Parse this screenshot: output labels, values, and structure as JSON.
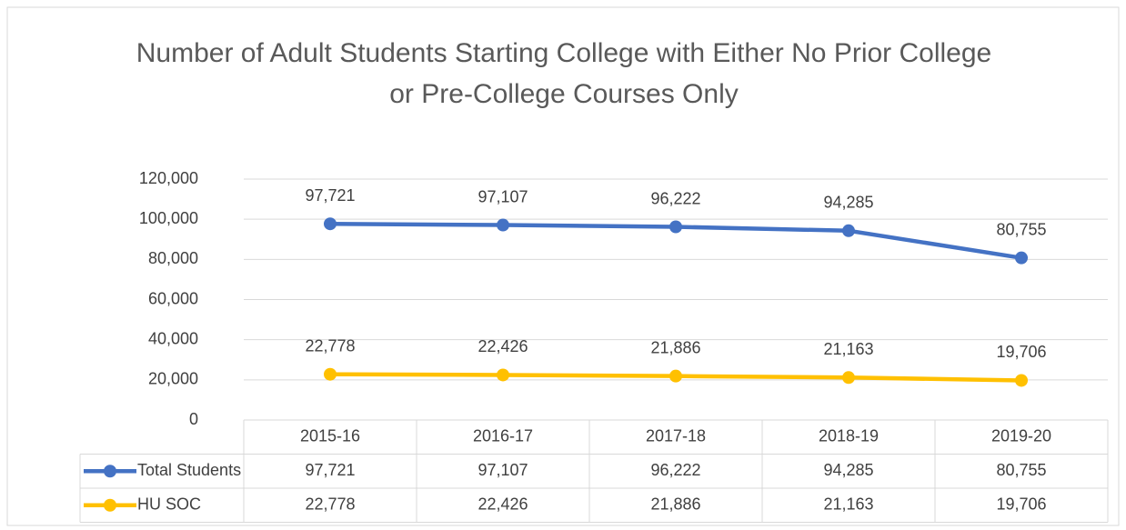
{
  "chart_data": {
    "type": "line",
    "title": "Number of Adult Students Starting College with Either No Prior College or Pre-College Courses Only",
    "categories": [
      "2015-16",
      "2016-17",
      "2017-18",
      "2018-19",
      "2019-20"
    ],
    "series": [
      {
        "name": "Total Students",
        "color": "#4472c4",
        "values": [
          97721,
          97107,
          96222,
          94285,
          80755
        ],
        "value_labels": [
          "97,721",
          "97,107",
          "96,222",
          "94,285",
          "80,755"
        ]
      },
      {
        "name": "HU SOC",
        "color": "#ffc000",
        "values": [
          22778,
          22426,
          21886,
          21163,
          19706
        ],
        "value_labels": [
          "22,778",
          "22,426",
          "21,886",
          "21,163",
          "19,706"
        ]
      }
    ],
    "ylim": [
      0,
      120000
    ],
    "yticks": [
      0,
      {
        "value": 20000,
        "label": "20,000"
      },
      {
        "value": 40000,
        "label": "40,000"
      },
      {
        "value": 60000,
        "label": "60,000"
      },
      {
        "value": 80000,
        "label": "80,000"
      },
      {
        "value": 100000,
        "label": "100,000"
      },
      {
        "value": 120000,
        "label": "120,000"
      }
    ],
    "grid": true,
    "data_table": true
  }
}
